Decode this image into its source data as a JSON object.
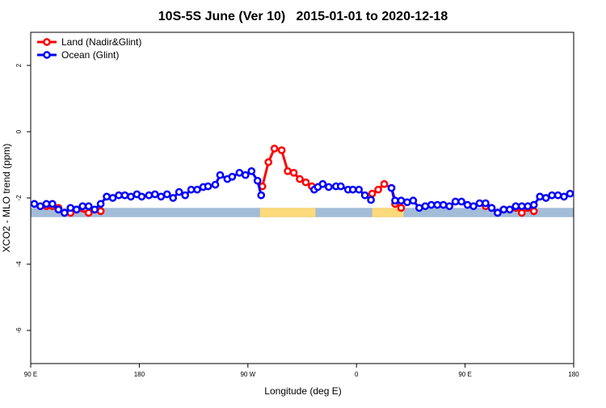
{
  "chart_data": {
    "type": "line",
    "title": "10S-5S June (Ver 10)   2015-01-01 to 2020-12-18",
    "x_label": "Longitude (deg E)",
    "y_label": "XCO2 - MLO trend (ppm)",
    "xlim": [
      90,
      540
    ],
    "ylim": [
      -7,
      3
    ],
    "xticks": [
      {
        "value": 90,
        "label": "90 E"
      },
      180,
      {
        "value": 270,
        "label": "90 W"
      },
      {
        "value": 360,
        "label": "0"
      },
      {
        "value": 450,
        "label": "90 E"
      },
      {
        "value": 540,
        "label": "180"
      }
    ],
    "yticks": [
      2,
      0,
      -2,
      -4,
      -6
    ],
    "legend": "top-left",
    "surface_band": {
      "ylim": [
        -2.3,
        -2.58
      ],
      "ocean_color": "#a3bcd8",
      "land_color": "#fcd97a",
      "land_x": [
        [
          280,
          326
        ],
        [
          373,
          399
        ]
      ]
    },
    "series": [
      {
        "name": "Land (Nadir&Glint)",
        "color": "#ff0000",
        "x": [
          103,
          108,
          113,
          118,
          123,
          128,
          138,
          148,
          null,
          282,
          287,
          292,
          298,
          303,
          308,
          313,
          318,
          323,
          null,
          373,
          378,
          383,
          389,
          392,
          397,
          null,
          467,
          472,
          477,
          482,
          492,
          497,
          502,
          507
        ],
        "values": [
          -2.25,
          -2.25,
          -2.3,
          -2.45,
          -2.45,
          -2.35,
          -2.45,
          -2.4,
          null,
          -1.65,
          -0.92,
          -0.51,
          -0.56,
          -1.19,
          -1.24,
          -1.43,
          -1.53,
          -1.65,
          null,
          -1.87,
          -1.75,
          -1.58,
          -1.7,
          -2.18,
          -2.3,
          null,
          -2.25,
          -2.3,
          -2.45,
          -2.35,
          -2.3,
          -2.45,
          -2.3,
          -2.4
        ]
      },
      {
        "name": "Ocean (Glint)",
        "color": "#0000ff",
        "x": [
          93,
          98,
          103,
          108,
          113,
          118,
          123,
          128,
          133,
          138,
          143,
          148,
          153,
          158,
          163,
          168,
          173,
          178,
          182,
          188,
          193,
          198,
          203,
          208,
          213,
          218,
          223,
          228,
          233,
          237,
          243,
          247,
          253,
          257,
          263,
          268,
          273,
          278,
          281,
          null,
          325,
          328,
          332,
          337,
          343,
          347,
          353,
          357,
          362,
          367,
          372,
          null,
          389,
          392,
          397,
          402,
          407,
          412,
          417,
          422,
          427,
          432,
          437,
          442,
          447,
          452,
          457,
          462,
          467,
          472,
          477,
          482,
          487,
          492,
          497,
          502,
          507,
          512,
          517,
          522,
          527,
          532,
          537
        ],
        "values": [
          -2.18,
          -2.25,
          -2.18,
          -2.18,
          -2.35,
          -2.45,
          -2.3,
          -2.35,
          -2.25,
          -2.25,
          -2.35,
          -2.18,
          -1.96,
          -2.0,
          -1.92,
          -1.92,
          -1.96,
          -1.89,
          -1.96,
          -1.92,
          -1.89,
          -1.96,
          -1.89,
          -2.0,
          -1.82,
          -1.92,
          -1.75,
          -1.75,
          -1.67,
          -1.65,
          -1.6,
          -1.31,
          -1.43,
          -1.36,
          -1.24,
          -1.31,
          -1.19,
          -1.48,
          -1.92,
          null,
          -1.75,
          -1.67,
          -1.58,
          -1.67,
          -1.65,
          -1.65,
          -1.75,
          -1.75,
          -1.75,
          -1.92,
          -2.06,
          null,
          -1.7,
          -2.08,
          -2.08,
          -2.13,
          -2.08,
          -2.3,
          -2.25,
          -2.21,
          -2.21,
          -2.21,
          -2.25,
          -2.11,
          -2.11,
          -2.21,
          -2.25,
          -2.16,
          -2.16,
          -2.3,
          -2.45,
          -2.35,
          -2.35,
          -2.25,
          -2.25,
          -2.25,
          -2.21,
          -1.96,
          -2.0,
          -1.92,
          -1.92,
          -1.96,
          -1.87
        ]
      }
    ]
  }
}
